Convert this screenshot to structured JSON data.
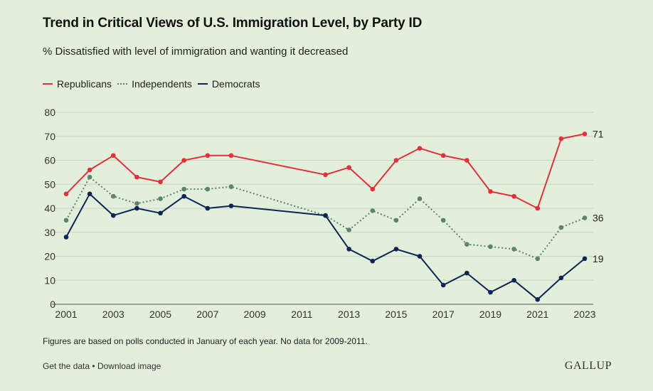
{
  "header": {
    "title": "Trend in Critical Views of U.S. Immigration Level, by Party ID",
    "subtitle": "% Dissatisfied with level of immigration and wanting it decreased"
  },
  "footer": {
    "note": "Figures are based on polls conducted in January of each year. No data for 2009-2011.",
    "get_data": "Get the data",
    "separator": "•",
    "download": "Download image",
    "brand": "GALLUP"
  },
  "chart_data": {
    "type": "line",
    "title": "Trend in Critical Views of U.S. Immigration Level, by Party ID",
    "subtitle": "% Dissatisfied with level of immigration and wanting it decreased",
    "xlabel": "",
    "ylabel": "",
    "xlim": [
      2001,
      2023
    ],
    "ylim": [
      0,
      80
    ],
    "x_ticks": [
      "2001",
      "2003",
      "2005",
      "2007",
      "2009",
      "2011",
      "2013",
      "2015",
      "2017",
      "2019",
      "2021",
      "2023"
    ],
    "y_ticks": [
      "0",
      "10",
      "20",
      "30",
      "40",
      "50",
      "60",
      "70",
      "80"
    ],
    "grid": "horizontal",
    "legend": "top-left",
    "series": [
      {
        "name": "Republicans",
        "color": "#e5303b",
        "style": "solid",
        "end_label": "71",
        "points": [
          [
            2001,
            46
          ],
          [
            2002,
            56
          ],
          [
            2003,
            62
          ],
          [
            2004,
            53
          ],
          [
            2005,
            51
          ],
          [
            2006,
            60
          ],
          [
            2007,
            62
          ],
          [
            2008,
            62
          ],
          [
            2012,
            54
          ],
          [
            2013,
            57
          ],
          [
            2014,
            48
          ],
          [
            2015,
            60
          ],
          [
            2016,
            65
          ],
          [
            2017,
            62
          ],
          [
            2018,
            60
          ],
          [
            2019,
            47
          ],
          [
            2020,
            45
          ],
          [
            2021,
            40
          ],
          [
            2022,
            69
          ],
          [
            2023,
            71
          ]
        ]
      },
      {
        "name": "Independents",
        "color": "#5e8272",
        "style": "dotted",
        "end_label": "36",
        "points": [
          [
            2001,
            35
          ],
          [
            2002,
            53
          ],
          [
            2003,
            45
          ],
          [
            2004,
            42
          ],
          [
            2005,
            44
          ],
          [
            2006,
            48
          ],
          [
            2007,
            48
          ],
          [
            2008,
            49
          ],
          [
            2012,
            37
          ],
          [
            2013,
            31
          ],
          [
            2014,
            39
          ],
          [
            2015,
            35
          ],
          [
            2016,
            44
          ],
          [
            2017,
            35
          ],
          [
            2018,
            25
          ],
          [
            2019,
            24
          ],
          [
            2020,
            23
          ],
          [
            2021,
            19
          ],
          [
            2022,
            32
          ],
          [
            2023,
            36
          ]
        ]
      },
      {
        "name": "Democrats",
        "color": "#0d2456",
        "style": "solid",
        "end_label": "19",
        "points": [
          [
            2001,
            28
          ],
          [
            2002,
            46
          ],
          [
            2003,
            37
          ],
          [
            2004,
            40
          ],
          [
            2005,
            38
          ],
          [
            2006,
            45
          ],
          [
            2007,
            40
          ],
          [
            2008,
            41
          ],
          [
            2012,
            37
          ],
          [
            2013,
            23
          ],
          [
            2014,
            18
          ],
          [
            2015,
            23
          ],
          [
            2016,
            20
          ],
          [
            2017,
            8
          ],
          [
            2018,
            13
          ],
          [
            2019,
            5
          ],
          [
            2020,
            10
          ],
          [
            2021,
            2
          ],
          [
            2022,
            11
          ],
          [
            2023,
            19
          ]
        ]
      }
    ]
  }
}
